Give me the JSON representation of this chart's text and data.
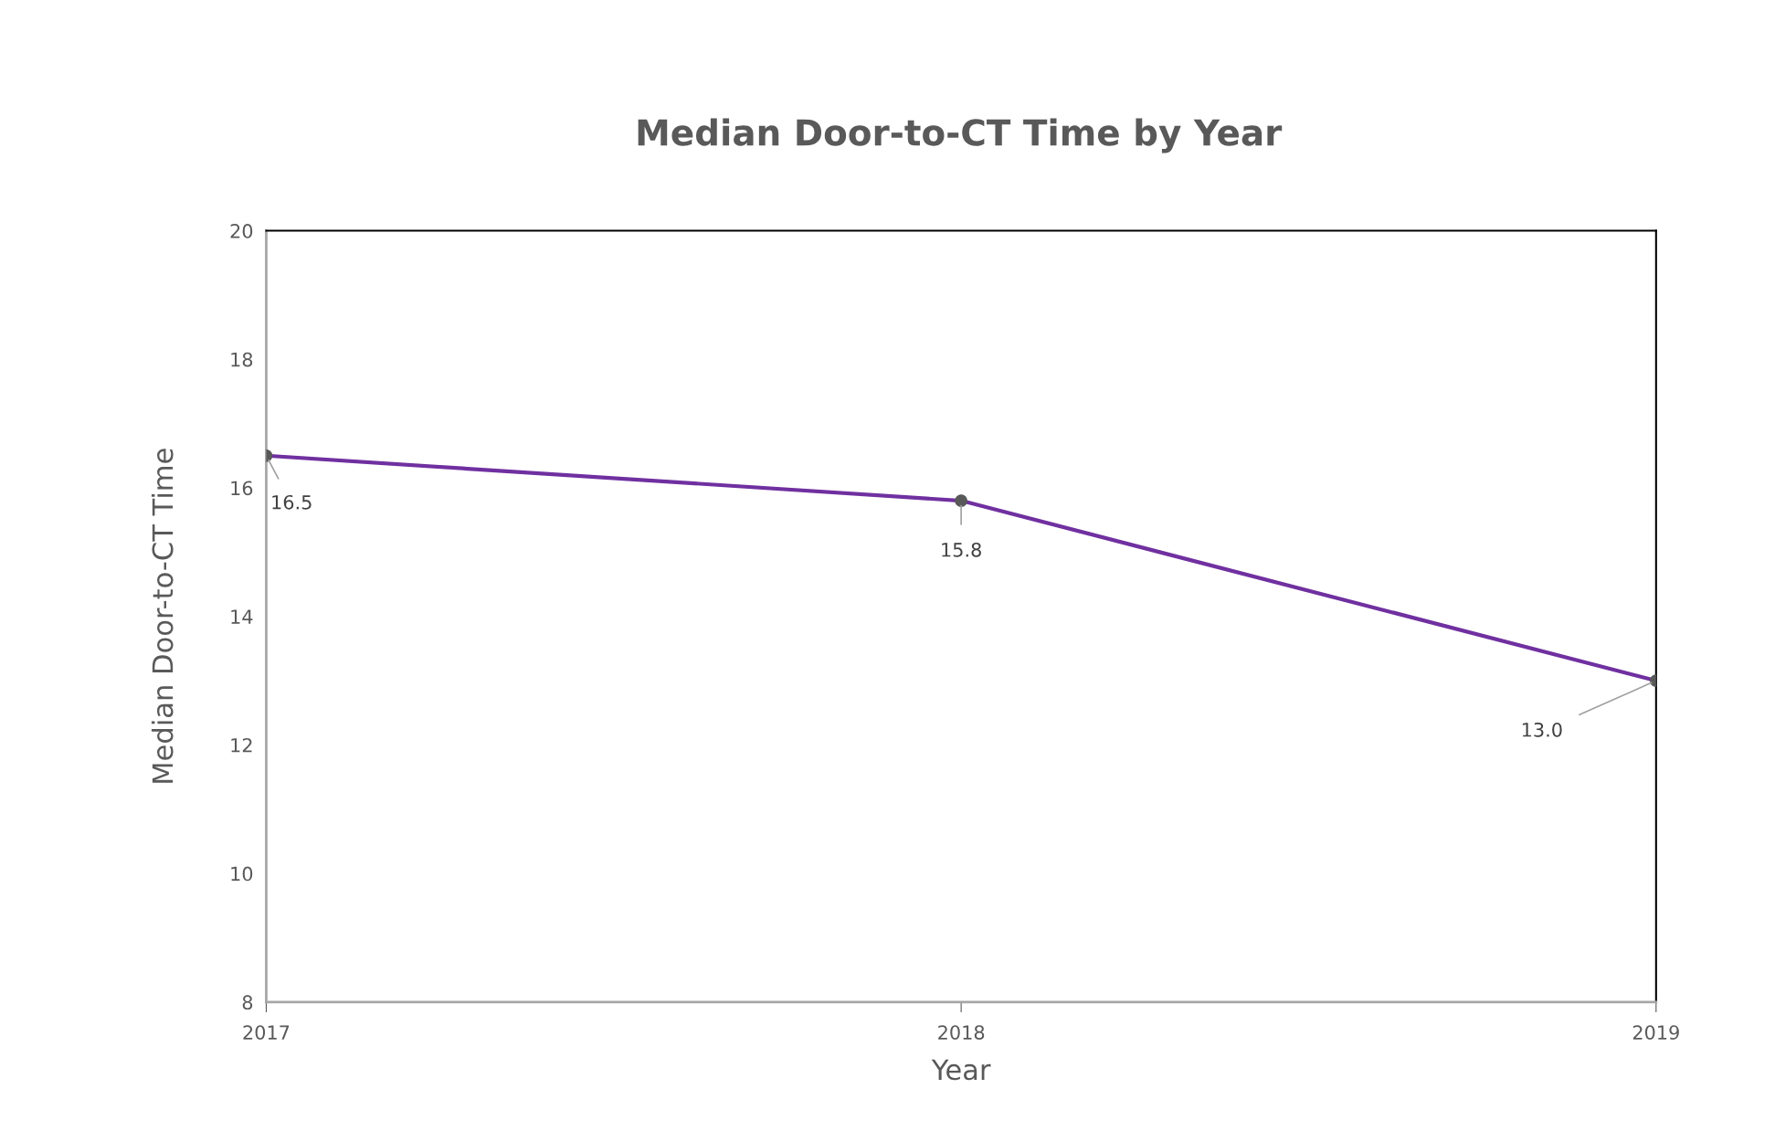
{
  "chart_data": {
    "type": "line",
    "title": "Median Door-to-CT Time by Year",
    "xlabel": "Year",
    "ylabel": "Median Door-to-CT Time",
    "categories": [
      "2017",
      "2018",
      "2019"
    ],
    "series": [
      {
        "color": "#7030a0",
        "values": [
          16.5,
          15.8,
          13.0
        ],
        "value_labels": [
          "16.5",
          "15.8",
          "13.0"
        ]
      }
    ],
    "ylim": [
      8,
      20
    ],
    "yticks": [
      8,
      10,
      12,
      14,
      16,
      18,
      20
    ],
    "grid": false,
    "legend": false,
    "marker": "circle",
    "line_style": "solid"
  }
}
